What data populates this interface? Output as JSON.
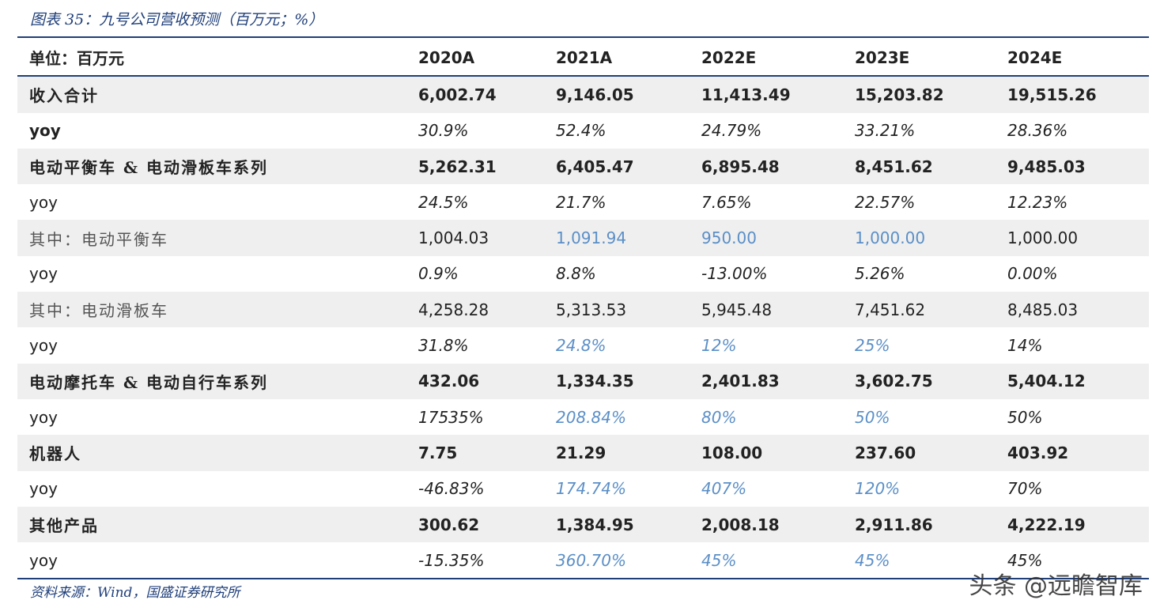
{
  "title": "图表 35：九号公司营收预测（百万元；%）",
  "header": [
    "单位：百万元",
    "2020A",
    "2021A",
    "2022E",
    "2023E",
    "2024E"
  ],
  "rows": [
    {
      "kind": "main",
      "shade": true,
      "cells": [
        "收入合计",
        "6,002.74",
        "9,146.05",
        "11,413.49",
        "15,203.82",
        "19,515.26"
      ],
      "blue": [
        false,
        false,
        false,
        false,
        false
      ]
    },
    {
      "kind": "yoy-bold",
      "shade": false,
      "cells": [
        "yoy",
        "30.9%",
        "52.4%",
        "24.79%",
        "33.21%",
        "28.36%"
      ],
      "blue": [
        false,
        false,
        false,
        false,
        false
      ]
    },
    {
      "kind": "main",
      "shade": true,
      "cells": [
        "电动平衡车 & 电动滑板车系列",
        "5,262.31",
        "6,405.47",
        "6,895.48",
        "8,451.62",
        "9,485.03"
      ],
      "blue": [
        false,
        false,
        false,
        false,
        false
      ]
    },
    {
      "kind": "yoy",
      "shade": false,
      "cells": [
        "yoy",
        "24.5%",
        "21.7%",
        "7.65%",
        "22.57%",
        "12.23%"
      ],
      "blue": [
        false,
        false,
        false,
        false,
        false
      ]
    },
    {
      "kind": "sub",
      "shade": true,
      "cells": [
        "其中：电动平衡车",
        "1,004.03",
        "1,091.94",
        "950.00",
        "1,000.00",
        "1,000.00"
      ],
      "blue": [
        false,
        false,
        true,
        true,
        true
      ]
    },
    {
      "kind": "yoy",
      "shade": false,
      "cells": [
        "yoy",
        "0.9%",
        "8.8%",
        "-13.00%",
        "5.26%",
        "0.00%"
      ],
      "blue": [
        false,
        false,
        false,
        false,
        false
      ]
    },
    {
      "kind": "sub",
      "shade": true,
      "cells": [
        "其中：电动滑板车",
        "4,258.28",
        "5,313.53",
        "5,945.48",
        "7,451.62",
        "8,485.03"
      ],
      "blue": [
        false,
        false,
        false,
        false,
        false
      ]
    },
    {
      "kind": "yoy",
      "shade": false,
      "cells": [
        "yoy",
        "31.8%",
        "24.8%",
        "12%",
        "25%",
        "14%"
      ],
      "blue": [
        false,
        false,
        true,
        true,
        true
      ]
    },
    {
      "kind": "main",
      "shade": true,
      "cells": [
        "电动摩托车 & 电动自行车系列",
        "432.06",
        "1,334.35",
        "2,401.83",
        "3,602.75",
        "5,404.12"
      ],
      "blue": [
        false,
        false,
        false,
        false,
        false
      ]
    },
    {
      "kind": "yoy",
      "shade": false,
      "cells": [
        "yoy",
        "17535%",
        "208.84%",
        "80%",
        "50%",
        "50%"
      ],
      "blue": [
        false,
        false,
        true,
        true,
        true
      ]
    },
    {
      "kind": "main",
      "shade": true,
      "cells": [
        "机器人",
        "7.75",
        "21.29",
        "108.00",
        "237.60",
        "403.92"
      ],
      "blue": [
        false,
        false,
        false,
        false,
        false
      ]
    },
    {
      "kind": "yoy",
      "shade": false,
      "cells": [
        "yoy",
        "-46.83%",
        "174.74%",
        "407%",
        "120%",
        "70%"
      ],
      "blue": [
        false,
        false,
        true,
        true,
        true
      ]
    },
    {
      "kind": "main",
      "shade": true,
      "cells": [
        "其他产品",
        "300.62",
        "1,384.95",
        "2,008.18",
        "2,911.86",
        "4,222.19"
      ],
      "blue": [
        false,
        false,
        false,
        false,
        false
      ]
    },
    {
      "kind": "yoy",
      "shade": false,
      "cells": [
        "yoy",
        "-15.35%",
        "360.70%",
        "45%",
        "45%",
        "45%"
      ],
      "blue": [
        false,
        false,
        true,
        true,
        true
      ]
    }
  ],
  "source": "资料来源：Wind，国盛证券研究所",
  "watermark": "头条 @远瞻智库",
  "colors": {
    "accent": "#1f3f7a",
    "forecast_blue": "#5b8fc7",
    "row_shade": "#efefef"
  }
}
